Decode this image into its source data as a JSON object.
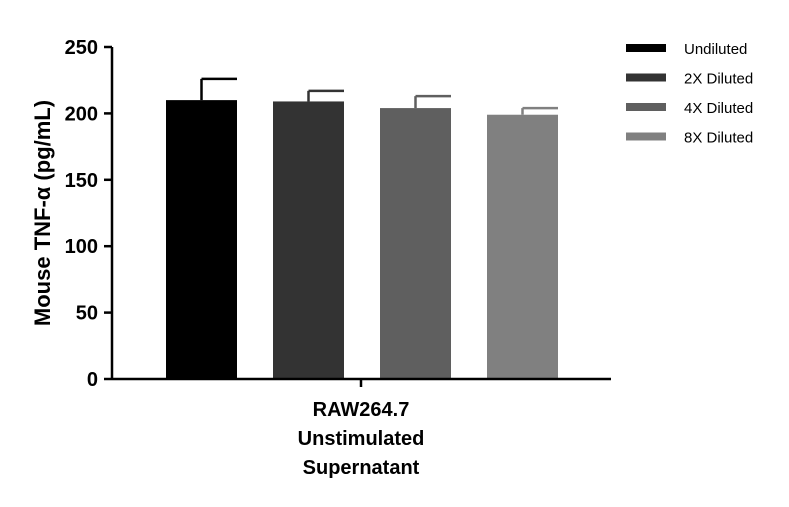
{
  "chart_data": {
    "type": "bar",
    "title": "",
    "ylabel": "Mouse TNF-α (pg/mL)",
    "xlabel": "",
    "ylim": [
      0,
      250
    ],
    "yticks": [
      0,
      50,
      100,
      150,
      200,
      250
    ],
    "category_lines": [
      "RAW264.7",
      "Unstimulated",
      "Supernatant"
    ],
    "series": [
      {
        "name": "Undiluted",
        "value": 210,
        "error": 16,
        "color": "#000000"
      },
      {
        "name": "2X Diluted",
        "value": 209,
        "error": 8,
        "color": "#333333"
      },
      {
        "name": "4X Diluted",
        "value": 204,
        "error": 9,
        "color": "#5f5f5f"
      },
      {
        "name": "8X Diluted",
        "value": 199,
        "error": 5,
        "color": "#808080"
      }
    ],
    "legend_position": "top-right",
    "grid": false
  }
}
